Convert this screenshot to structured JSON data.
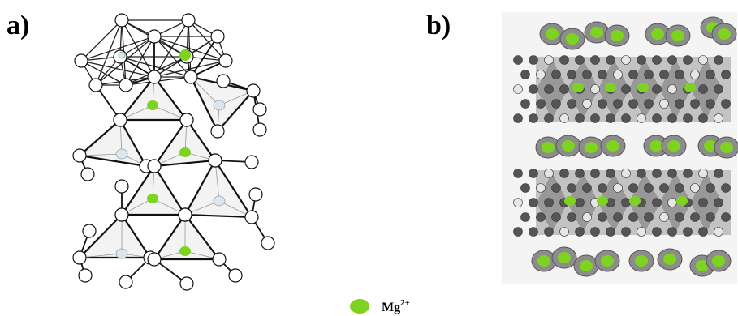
{
  "panels": [
    {
      "label": "a)"
    },
    {
      "label": "b)"
    }
  ],
  "legend": {
    "text": "Mg",
    "superscript": "2+"
  }
}
